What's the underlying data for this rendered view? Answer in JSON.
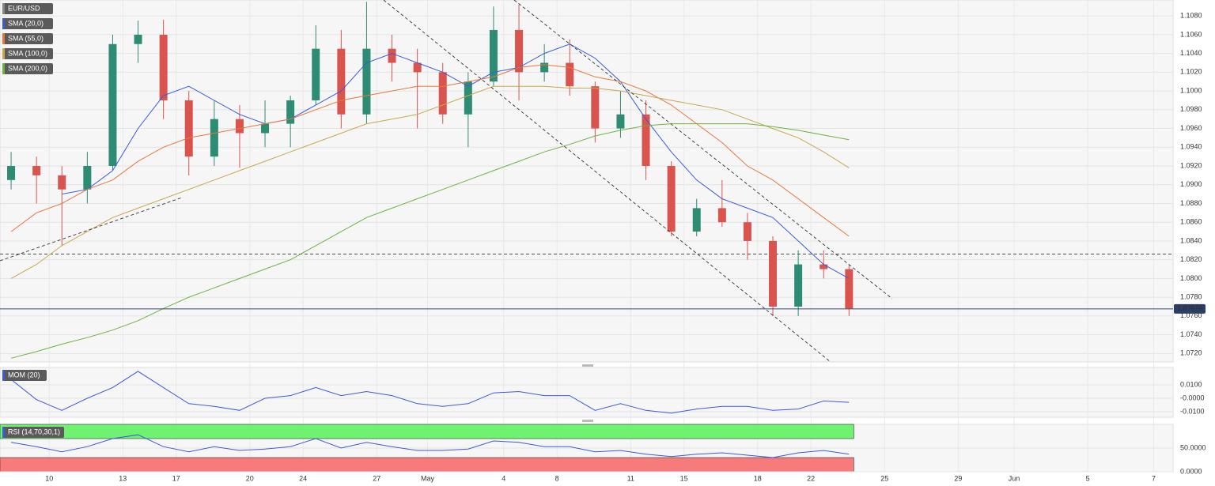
{
  "chart_data": [
    {
      "type": "candlestick",
      "xlim": [
        0,
        46.2
      ],
      "xticks": [
        {
          "value": 2,
          "label": "10"
        },
        {
          "value": 4.9,
          "label": "13"
        },
        {
          "value": 7,
          "label": "17"
        },
        {
          "value": 9.9,
          "label": "20"
        },
        {
          "value": 12,
          "label": "24"
        },
        {
          "value": 14.9,
          "label": "27"
        },
        {
          "value": 16.9,
          "label": "May"
        },
        {
          "value": 19.9,
          "label": "4"
        },
        {
          "value": 22,
          "label": "8"
        },
        {
          "value": 24.9,
          "label": "11"
        },
        {
          "value": 27,
          "label": "15"
        },
        {
          "value": 29.9,
          "label": "18"
        },
        {
          "value": 32,
          "label": "22"
        },
        {
          "value": 34.9,
          "label": "25"
        },
        {
          "value": 37.8,
          "label": "29"
        },
        {
          "value": 40,
          "label": "Jun"
        },
        {
          "value": 42.9,
          "label": "5"
        },
        {
          "value": 45.5,
          "label": "7"
        }
      ],
      "ylim": [
        1.0711,
        1.1097
      ],
      "yticks": [
        {
          "value": 1.072,
          "label": "1.0720"
        },
        {
          "value": 1.074,
          "label": "1.0740"
        },
        {
          "value": 1.076,
          "label": "1.0760"
        },
        {
          "value": 1.078,
          "label": "1.0780"
        },
        {
          "value": 1.08,
          "label": "1.0800"
        },
        {
          "value": 1.082,
          "label": "1.0820"
        },
        {
          "value": 1.084,
          "label": "1.0840"
        },
        {
          "value": 1.086,
          "label": "1.0860"
        },
        {
          "value": 1.088,
          "label": "1.0880"
        },
        {
          "value": 1.09,
          "label": "1.0900"
        },
        {
          "value": 1.092,
          "label": "1.0920"
        },
        {
          "value": 1.094,
          "label": "1.0940"
        },
        {
          "value": 1.096,
          "label": "1.0960"
        },
        {
          "value": 1.098,
          "label": "1.0980"
        },
        {
          "value": 1.1,
          "label": "1.1000"
        },
        {
          "value": 1.102,
          "label": "1.1020"
        },
        {
          "value": 1.104,
          "label": "1.1040"
        },
        {
          "value": 1.106,
          "label": "1.1060"
        },
        {
          "value": 1.108,
          "label": "1.1080"
        }
      ],
      "grid": true,
      "current_price": 1.07676,
      "horizontal_lines": [
        1.0826
      ],
      "x": [
        0.5,
        1.5,
        2.5,
        3.5,
        4.5,
        5.5,
        6.5,
        7.5,
        8.5,
        9.5,
        10.5,
        11.5,
        12.5,
        13.5,
        14.5,
        15.5,
        16.5,
        17.5,
        18.5,
        19.5,
        20.5,
        21.5,
        22.5,
        23.5,
        24.5,
        25.5,
        26.5,
        27.5,
        28.5,
        29.5,
        30.5,
        31.5,
        32.5,
        33.5
      ],
      "up_color": "#2e8b74",
      "down_color": "#d9534f",
      "series": [
        {
          "name": "EUR/USD",
          "color": "#888888",
          "open": [
            1.0905,
            1.092,
            1.091,
            1.0895,
            1.092,
            1.105,
            1.106,
            1.099,
            1.093,
            1.097,
            1.0955,
            1.0965,
            1.099,
            1.1045,
            1.0975,
            1.1045,
            1.103,
            1.102,
            1.0975,
            1.101,
            1.1065,
            1.102,
            1.103,
            1.1005,
            1.096,
            1.0975,
            1.092,
            1.085,
            1.0875,
            1.086,
            1.084,
            1.077,
            1.0815,
            1.081
          ],
          "high": [
            1.0935,
            1.093,
            1.092,
            1.0935,
            1.106,
            1.1075,
            1.1076,
            1.1,
            1.099,
            1.0985,
            1.099,
            1.0995,
            1.107,
            1.1065,
            1.1095,
            1.106,
            1.1045,
            1.103,
            1.102,
            1.109,
            1.1092,
            1.105,
            1.1055,
            1.101,
            1.1,
            1.099,
            1.0925,
            1.0885,
            1.0905,
            1.087,
            1.0845,
            1.083,
            1.083,
            1.0815
          ],
          "low": [
            1.0895,
            1.088,
            1.0835,
            1.088,
            1.0915,
            1.103,
            1.097,
            1.091,
            1.092,
            1.0918,
            1.094,
            1.094,
            1.0985,
            1.096,
            1.0965,
            1.101,
            1.096,
            1.0965,
            1.094,
            1.1005,
            1.099,
            1.101,
            1.0995,
            1.0945,
            1.095,
            1.0905,
            1.0845,
            1.0845,
            1.0855,
            1.082,
            1.076,
            1.076,
            1.08,
            1.076
          ],
          "close": [
            1.092,
            1.091,
            1.0895,
            1.092,
            1.105,
            1.106,
            1.099,
            1.093,
            1.097,
            1.0955,
            1.0965,
            1.099,
            1.1045,
            1.0975,
            1.1045,
            1.103,
            1.102,
            1.0975,
            1.101,
            1.1065,
            1.102,
            1.103,
            1.1005,
            1.096,
            1.0975,
            1.092,
            1.085,
            1.0875,
            1.086,
            1.084,
            1.077,
            1.0815,
            1.081,
            1.0768
          ]
        },
        {
          "name": "SMA (20,0)",
          "color": "#3b5bdb",
          "values": [
            null,
            null,
            1.089,
            1.0895,
            1.0915,
            1.096,
            1.0995,
            1.1005,
            1.099,
            1.0975,
            1.0965,
            1.097,
            1.0985,
            1.1,
            1.103,
            1.104,
            1.103,
            1.102,
            1.1005,
            1.102,
            1.1025,
            1.104,
            1.105,
            1.1035,
            1.101,
            1.097,
            1.0935,
            1.0905,
            1.0885,
            1.0875,
            1.0865,
            1.084,
            1.0815,
            1.08
          ]
        },
        {
          "name": "SMA (55,0)",
          "color": "#e8773a",
          "values": [
            1.085,
            1.087,
            1.088,
            1.0895,
            1.0905,
            1.0925,
            1.094,
            1.095,
            1.0955,
            1.096,
            1.0965,
            1.097,
            1.098,
            1.099,
            1.0995,
            1.1,
            1.1005,
            1.1005,
            1.101,
            1.1015,
            1.1025,
            1.1028,
            1.1025,
            1.1015,
            1.101,
            1.1,
            1.0985,
            1.0965,
            1.0945,
            1.092,
            1.0905,
            1.0885,
            1.0865,
            1.0845
          ]
        },
        {
          "name": "SMA (100,0)",
          "color": "#c9a84a",
          "values": [
            1.08,
            1.0815,
            1.0835,
            1.085,
            1.0865,
            1.0875,
            1.0885,
            1.0895,
            1.0905,
            1.0915,
            1.0925,
            1.0935,
            1.0945,
            1.0955,
            1.0965,
            1.097,
            1.0975,
            1.0985,
            1.0995,
            1.1005,
            1.1005,
            1.1005,
            1.1003,
            1.1003,
            1.1,
            1.0995,
            1.099,
            1.0985,
            1.098,
            1.097,
            1.096,
            1.095,
            1.0935,
            1.0918
          ]
        },
        {
          "name": "SMA (200,0)",
          "color": "#6cb33f",
          "values": [
            1.0715,
            1.0722,
            1.073,
            1.0737,
            1.0745,
            1.0755,
            1.0768,
            1.078,
            1.079,
            1.08,
            1.081,
            1.082,
            1.0835,
            1.085,
            1.0865,
            1.0875,
            1.0885,
            1.0895,
            1.0905,
            1.0915,
            1.0925,
            1.0935,
            1.0943,
            1.0952,
            1.0958,
            1.0963,
            1.0965,
            1.0965,
            1.0965,
            1.0965,
            1.0962,
            1.0958,
            1.0953,
            1.0948
          ]
        }
      ]
    },
    {
      "type": "line",
      "xlim": [
        0,
        46.2
      ],
      "ylim": [
        -0.0141,
        0.0229
      ],
      "yticks": [
        {
          "value": 0.01,
          "label": "0.0100"
        },
        {
          "value": 0,
          "label": "-0.0000"
        },
        {
          "value": -0.01,
          "label": "-0.0100"
        }
      ],
      "x": [
        0.5,
        1.5,
        2.5,
        3.5,
        4.5,
        5.5,
        6.5,
        7.5,
        8.5,
        9.5,
        10.5,
        11.5,
        12.5,
        13.5,
        14.5,
        15.5,
        16.5,
        17.5,
        18.5,
        19.5,
        20.5,
        21.5,
        22.5,
        23.5,
        24.5,
        25.5,
        26.5,
        27.5,
        28.5,
        29.5,
        30.5,
        31.5,
        32.5,
        33.5
      ],
      "series": [
        {
          "name": "MOM (20)",
          "color": "#3b5bdb",
          "values": [
            0.014,
            -0.001,
            -0.009,
            0,
            0.008,
            0.02,
            0.008,
            -0.004,
            -0.006,
            -0.009,
            0,
            0.002,
            0.008,
            0.002,
            0.005,
            0.002,
            -0.004,
            -0.006,
            -0.004,
            0.004,
            0.005,
            0.002,
            0.002,
            -0.009,
            -0.004,
            -0.009,
            -0.011,
            -0.008,
            -0.006,
            -0.006,
            -0.009,
            -0.008,
            -0.002,
            -0.003
          ]
        }
      ]
    },
    {
      "type": "line",
      "xlim": [
        0,
        46.2
      ],
      "ylim": [
        0,
        100
      ],
      "yticks": [
        {
          "value": 50,
          "label": "50.0000"
        },
        {
          "value": 0,
          "label": "0.0000"
        }
      ],
      "overbought": 70,
      "oversold": 30,
      "x": [
        0.5,
        1.5,
        2.5,
        3.5,
        4.5,
        5.5,
        6.5,
        7.5,
        8.5,
        9.5,
        10.5,
        11.5,
        12.5,
        13.5,
        14.5,
        15.5,
        16.5,
        17.5,
        18.5,
        19.5,
        20.5,
        21.5,
        22.5,
        23.5,
        24.5,
        25.5,
        26.5,
        27.5,
        28.5,
        29.5,
        30.5,
        31.5,
        32.5,
        33.5
      ],
      "series": [
        {
          "name": "RSI (14,70,30,1)",
          "color": "#3b5bdb",
          "values": [
            62,
            53,
            42,
            53,
            70,
            78,
            53,
            42,
            53,
            45,
            48,
            53,
            70,
            50,
            62,
            53,
            45,
            45,
            48,
            65,
            62,
            53,
            53,
            42,
            45,
            37,
            32,
            37,
            40,
            35,
            30,
            40,
            45,
            37
          ]
        }
      ]
    }
  ]
}
